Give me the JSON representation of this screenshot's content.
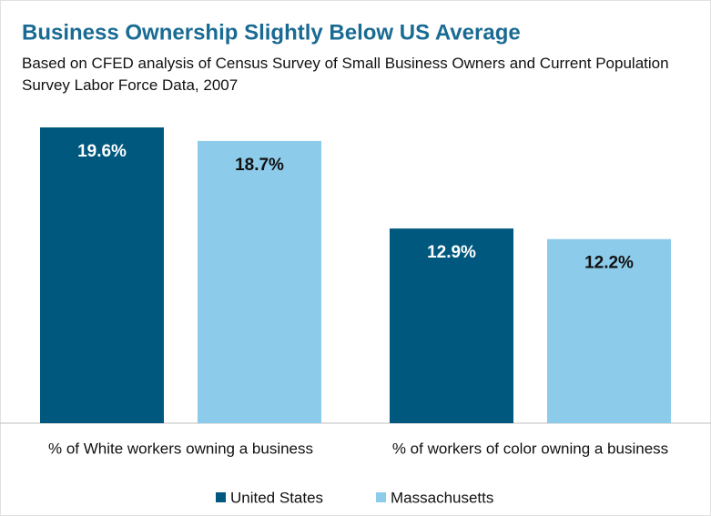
{
  "chart_data": {
    "type": "bar",
    "title": "Business Ownership Slightly Below US Average",
    "subtitle": "Based on CFED analysis of Census Survey of Small Business Owners and Current Population Survey Labor Force Data, 2007",
    "categories": [
      "% of White workers owning a business",
      "% of workers of color owning a business"
    ],
    "series": [
      {
        "name": "United States",
        "color": "#00587f",
        "values": [
          19.6,
          12.9
        ],
        "value_labels": [
          "19.6%",
          "12.9%"
        ]
      },
      {
        "name": "Massachusetts",
        "color": "#8dcbea",
        "values": [
          18.7,
          12.2
        ],
        "value_labels": [
          "18.7%",
          "12.2%"
        ]
      }
    ],
    "legend": "bottom"
  }
}
